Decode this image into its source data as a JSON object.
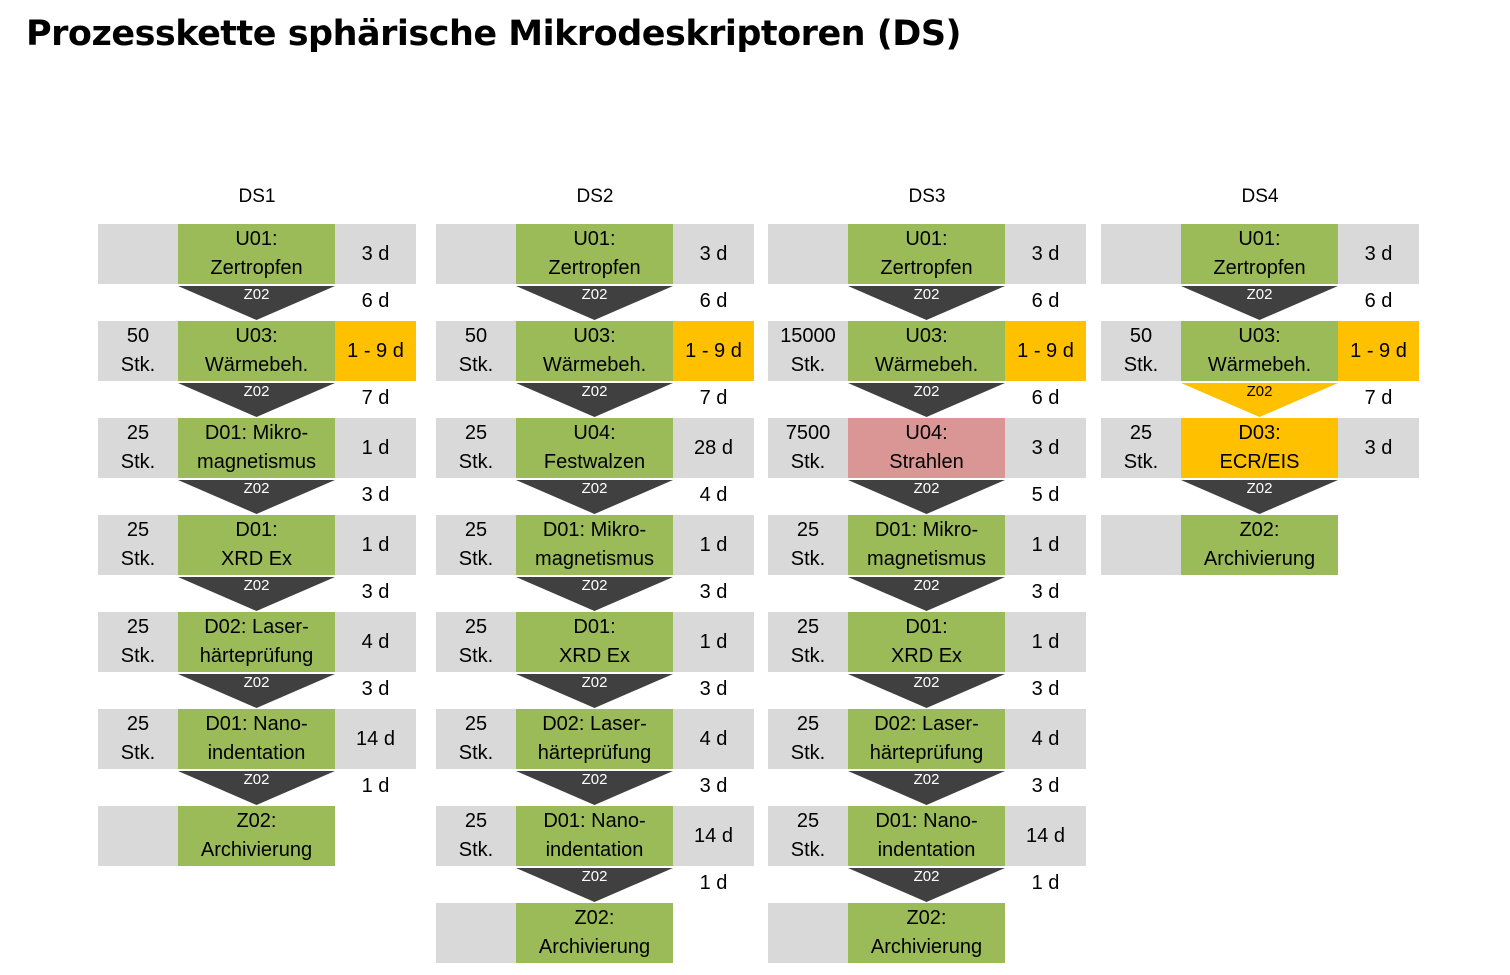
{
  "title": "Prozesskette sphärische Mikrodeskriptoren (DS)",
  "colors": {
    "green": "#9bbb59",
    "yellow": "#ffc000",
    "red": "#da9694",
    "gray": "#d9d9d9",
    "arrow_dark": "#404040"
  },
  "columns": [
    {
      "name": "DS1",
      "steps": [
        {
          "qty": "",
          "label": "U01:\nZertropfen",
          "color": "green",
          "duration": "3 d",
          "dur_color": "gray"
        },
        {
          "qty": "50\nStk.",
          "label": "U03:\nWärmebeh.",
          "color": "green",
          "duration": "1 - 9 d",
          "dur_color": "yellow"
        },
        {
          "qty": "25\nStk.",
          "label": "D01: Mikro-\nmagnetismus",
          "color": "green",
          "duration": "1 d",
          "dur_color": "gray"
        },
        {
          "qty": "25\nStk.",
          "label": "D01:\nXRD Ex",
          "color": "green",
          "duration": "1 d",
          "dur_color": "gray"
        },
        {
          "qty": "25\nStk.",
          "label": "D02: Laser-\nhärteprüfung",
          "color": "green",
          "duration": "4 d",
          "dur_color": "gray"
        },
        {
          "qty": "25\nStk.",
          "label": "D01: Nano-\nindentation",
          "color": "green",
          "duration": "14 d",
          "dur_color": "gray"
        },
        {
          "qty": "",
          "label": "Z02:\nArchivierung",
          "color": "green",
          "duration": "",
          "dur_color": "none"
        }
      ],
      "transitions": [
        {
          "label": "Z02",
          "time": "6 d",
          "color": "dark"
        },
        {
          "label": "Z02",
          "time": "7 d",
          "color": "dark"
        },
        {
          "label": "Z02",
          "time": "3 d",
          "color": "dark"
        },
        {
          "label": "Z02",
          "time": "3 d",
          "color": "dark"
        },
        {
          "label": "Z02",
          "time": "3 d",
          "color": "dark"
        },
        {
          "label": "Z02",
          "time": "1 d",
          "color": "dark"
        }
      ]
    },
    {
      "name": "DS2",
      "steps": [
        {
          "qty": "",
          "label": "U01:\nZertropfen",
          "color": "green",
          "duration": "3 d",
          "dur_color": "gray"
        },
        {
          "qty": "50\nStk.",
          "label": "U03:\nWärmebeh.",
          "color": "green",
          "duration": "1 - 9 d",
          "dur_color": "yellow"
        },
        {
          "qty": "25\nStk.",
          "label": "U04:\nFestwalzen",
          "color": "green",
          "duration": "28 d",
          "dur_color": "gray"
        },
        {
          "qty": "25\nStk.",
          "label": "D01: Mikro-\nmagnetismus",
          "color": "green",
          "duration": "1 d",
          "dur_color": "gray"
        },
        {
          "qty": "25\nStk.",
          "label": "D01:\nXRD Ex",
          "color": "green",
          "duration": "1 d",
          "dur_color": "gray"
        },
        {
          "qty": "25\nStk.",
          "label": "D02: Laser-\nhärteprüfung",
          "color": "green",
          "duration": "4 d",
          "dur_color": "gray"
        },
        {
          "qty": "25\nStk.",
          "label": "D01: Nano-\nindentation",
          "color": "green",
          "duration": "14 d",
          "dur_color": "gray"
        },
        {
          "qty": "",
          "label": "Z02:\nArchivierung",
          "color": "green",
          "duration": "",
          "dur_color": "none"
        }
      ],
      "transitions": [
        {
          "label": "Z02",
          "time": "6 d",
          "color": "dark"
        },
        {
          "label": "Z02",
          "time": "7 d",
          "color": "dark"
        },
        {
          "label": "Z02",
          "time": "4 d",
          "color": "dark"
        },
        {
          "label": "Z02",
          "time": "3 d",
          "color": "dark"
        },
        {
          "label": "Z02",
          "time": "3 d",
          "color": "dark"
        },
        {
          "label": "Z02",
          "time": "3 d",
          "color": "dark"
        },
        {
          "label": "Z02",
          "time": "1 d",
          "color": "dark"
        }
      ]
    },
    {
      "name": "DS3",
      "steps": [
        {
          "qty": "",
          "label": "U01:\nZertropfen",
          "color": "green",
          "duration": "3 d",
          "dur_color": "gray"
        },
        {
          "qty": "15000\nStk.",
          "label": "U03:\nWärmebeh.",
          "color": "green",
          "duration": "1 - 9 d",
          "dur_color": "yellow"
        },
        {
          "qty": "7500\nStk.",
          "label": "U04:\nStrahlen",
          "color": "red",
          "duration": "3 d",
          "dur_color": "gray"
        },
        {
          "qty": "25\nStk.",
          "label": "D01: Mikro-\nmagnetismus",
          "color": "green",
          "duration": "1 d",
          "dur_color": "gray"
        },
        {
          "qty": "25\nStk.",
          "label": "D01:\nXRD Ex",
          "color": "green",
          "duration": "1 d",
          "dur_color": "gray"
        },
        {
          "qty": "25\nStk.",
          "label": "D02: Laser-\nhärteprüfung",
          "color": "green",
          "duration": "4 d",
          "dur_color": "gray"
        },
        {
          "qty": "25\nStk.",
          "label": "D01: Nano-\nindentation",
          "color": "green",
          "duration": "14 d",
          "dur_color": "gray"
        },
        {
          "qty": "",
          "label": "Z02:\nArchivierung",
          "color": "green",
          "duration": "",
          "dur_color": "none"
        }
      ],
      "transitions": [
        {
          "label": "Z02",
          "time": "6 d",
          "color": "dark"
        },
        {
          "label": "Z02",
          "time": "6 d",
          "color": "dark"
        },
        {
          "label": "Z02",
          "time": "5 d",
          "color": "dark"
        },
        {
          "label": "Z02",
          "time": "3 d",
          "color": "dark"
        },
        {
          "label": "Z02",
          "time": "3 d",
          "color": "dark"
        },
        {
          "label": "Z02",
          "time": "3 d",
          "color": "dark"
        },
        {
          "label": "Z02",
          "time": "1 d",
          "color": "dark"
        }
      ]
    },
    {
      "name": "DS4",
      "steps": [
        {
          "qty": "",
          "label": "U01:\nZertropfen",
          "color": "green",
          "duration": "3 d",
          "dur_color": "gray"
        },
        {
          "qty": "50\nStk.",
          "label": "U03:\nWärmebeh.",
          "color": "green",
          "duration": "1 - 9 d",
          "dur_color": "yellow"
        },
        {
          "qty": "25\nStk.",
          "label": "D03:\nECR/EIS",
          "color": "yellow",
          "duration": "3 d",
          "dur_color": "gray"
        },
        {
          "qty": "",
          "label": "Z02:\nArchivierung",
          "color": "green",
          "duration": "",
          "dur_color": "none"
        }
      ],
      "transitions": [
        {
          "label": "Z02",
          "time": "6 d",
          "color": "dark"
        },
        {
          "label": "Z02",
          "time": "7 d",
          "color": "yellow"
        },
        {
          "label": "Z02",
          "time": "",
          "color": "dark"
        }
      ]
    }
  ]
}
